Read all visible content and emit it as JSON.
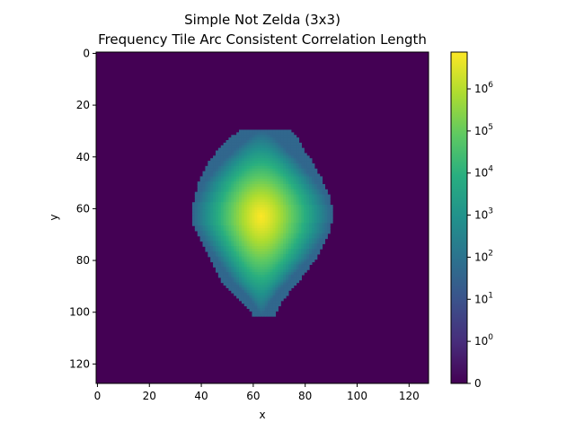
{
  "chart_data": {
    "type": "heatmap",
    "title": "Simple Not Zelda (3x3)",
    "subtitle": "Frequency Tile Arc Consistent Correlation Length",
    "xlabel": "x",
    "ylabel": "y",
    "xlim": [
      0,
      127
    ],
    "ylim": [
      127,
      0
    ],
    "x_ticks": [
      0,
      20,
      40,
      60,
      80,
      100,
      120
    ],
    "y_ticks": [
      0,
      20,
      40,
      60,
      80,
      100,
      120
    ],
    "colormap": "viridis",
    "color_scale": "symlog",
    "color_range": [
      0,
      7500000
    ],
    "colorbar_ticks": [
      {
        "value": 0,
        "base": "0",
        "exp": ""
      },
      {
        "value": 1,
        "base": "10",
        "exp": "0"
      },
      {
        "value": 10,
        "base": "10",
        "exp": "1"
      },
      {
        "value": 100,
        "base": "10",
        "exp": "2"
      },
      {
        "value": 1000,
        "base": "10",
        "exp": "3"
      },
      {
        "value": 10000,
        "base": "10",
        "exp": "4"
      },
      {
        "value": 100000,
        "base": "10",
        "exp": "5"
      },
      {
        "value": 1000000,
        "base": "10",
        "exp": "6"
      }
    ],
    "background_value": 0,
    "blob": {
      "peak_center": [
        63,
        63
      ],
      "peak_value": 7000000,
      "edge_value": 40,
      "row_extents": [
        [
          30,
          55,
          74
        ],
        [
          32,
          52,
          76
        ],
        [
          34,
          50,
          77
        ],
        [
          36,
          48,
          78
        ],
        [
          38,
          46,
          79
        ],
        [
          40,
          45,
          81
        ],
        [
          42,
          43,
          82
        ],
        [
          44,
          42,
          83
        ],
        [
          46,
          41,
          84
        ],
        [
          48,
          40,
          86
        ],
        [
          50,
          39,
          86
        ],
        [
          52,
          39,
          87
        ],
        [
          54,
          38,
          88
        ],
        [
          56,
          38,
          89
        ],
        [
          58,
          37,
          89
        ],
        [
          60,
          37,
          90
        ],
        [
          62,
          37,
          90
        ],
        [
          64,
          37,
          90
        ],
        [
          66,
          37,
          89
        ],
        [
          68,
          38,
          89
        ],
        [
          70,
          39,
          88
        ],
        [
          72,
          40,
          87
        ],
        [
          74,
          41,
          86
        ],
        [
          76,
          42,
          85
        ],
        [
          78,
          43,
          84
        ],
        [
          80,
          44,
          83
        ],
        [
          82,
          45,
          81
        ],
        [
          84,
          46,
          80
        ],
        [
          86,
          47,
          78
        ],
        [
          88,
          48,
          77
        ],
        [
          90,
          50,
          75
        ],
        [
          92,
          52,
          73
        ],
        [
          94,
          54,
          72
        ],
        [
          96,
          56,
          70
        ],
        [
          98,
          58,
          69
        ],
        [
          100,
          60,
          68
        ]
      ]
    }
  }
}
